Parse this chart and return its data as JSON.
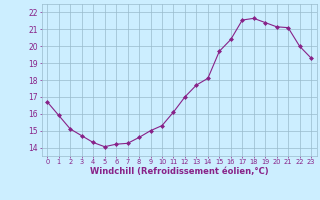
{
  "x": [
    0,
    1,
    2,
    3,
    4,
    5,
    6,
    7,
    8,
    9,
    10,
    11,
    12,
    13,
    14,
    15,
    16,
    17,
    18,
    19,
    20,
    21,
    22,
    23
  ],
  "y": [
    16.7,
    15.9,
    15.1,
    14.7,
    14.3,
    14.05,
    14.2,
    14.25,
    14.6,
    15.0,
    15.3,
    16.1,
    17.0,
    17.7,
    18.1,
    19.7,
    20.4,
    21.55,
    21.65,
    21.4,
    21.15,
    21.1,
    20.0,
    19.3
  ],
  "line_color": "#882288",
  "marker": "D",
  "marker_size": 2.0,
  "bg_color": "#cceeff",
  "grid_color": "#99bbcc",
  "xlabel": "Windchill (Refroidissement éolien,°C)",
  "xlabel_color": "#882288",
  "tick_color": "#882288",
  "ylim": [
    13.5,
    22.5
  ],
  "xlim": [
    -0.5,
    23.5
  ],
  "yticks": [
    14,
    15,
    16,
    17,
    18,
    19,
    20,
    21,
    22
  ],
  "xtick_labels": [
    "0",
    "1",
    "2",
    "3",
    "4",
    "5",
    "6",
    "7",
    "8",
    "9",
    "10",
    "11",
    "12",
    "13",
    "14",
    "15",
    "16",
    "17",
    "18",
    "19",
    "20",
    "21",
    "22",
    "23"
  ]
}
